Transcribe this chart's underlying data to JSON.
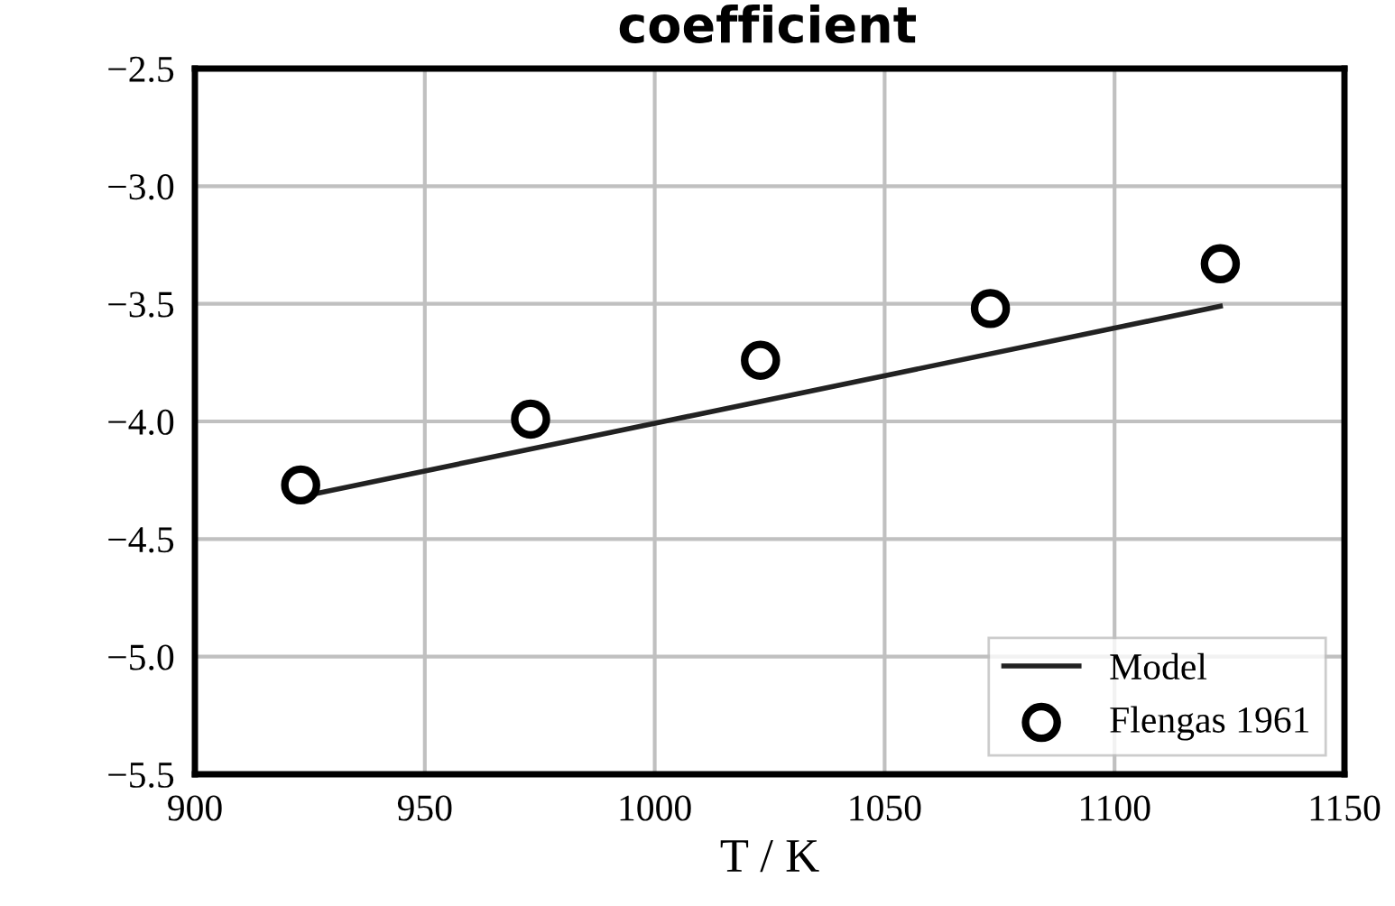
{
  "chart_data": {
    "type": "scatter",
    "title": "coefficient",
    "xlabel": "T / K",
    "series": [
      {
        "name": "Model",
        "type": "line",
        "color": "#222222",
        "x": [
          923,
          1123
        ],
        "values": [
          -4.32,
          -3.51
        ],
        "marker": "none",
        "line_style": "solid"
      },
      {
        "name": "Flengas 1961",
        "type": "scatter",
        "color": "#000000",
        "x": [
          923,
          973,
          1023,
          1073,
          1123
        ],
        "values": [
          -4.27,
          -3.99,
          -3.74,
          -3.52,
          -3.33
        ],
        "marker": "circle"
      }
    ],
    "xlim": [
      900,
      1150
    ],
    "xticks": [
      900,
      950,
      1000,
      1050,
      1100,
      1150
    ],
    "ylim": [
      -5.5,
      -2.5
    ],
    "yticks": [
      {
        "value": -5.5,
        "label": "−5.5"
      },
      {
        "value": -5.0,
        "label": "−5.0"
      },
      {
        "value": -4.5,
        "label": "−4.5"
      },
      {
        "value": -4.0,
        "label": "−4.0"
      },
      {
        "value": -3.5,
        "label": "−3.5"
      },
      {
        "value": -3.0,
        "label": "−3.0"
      },
      {
        "value": -2.5,
        "label": "−2.5"
      }
    ],
    "grid": true,
    "legend": "bottom right"
  }
}
